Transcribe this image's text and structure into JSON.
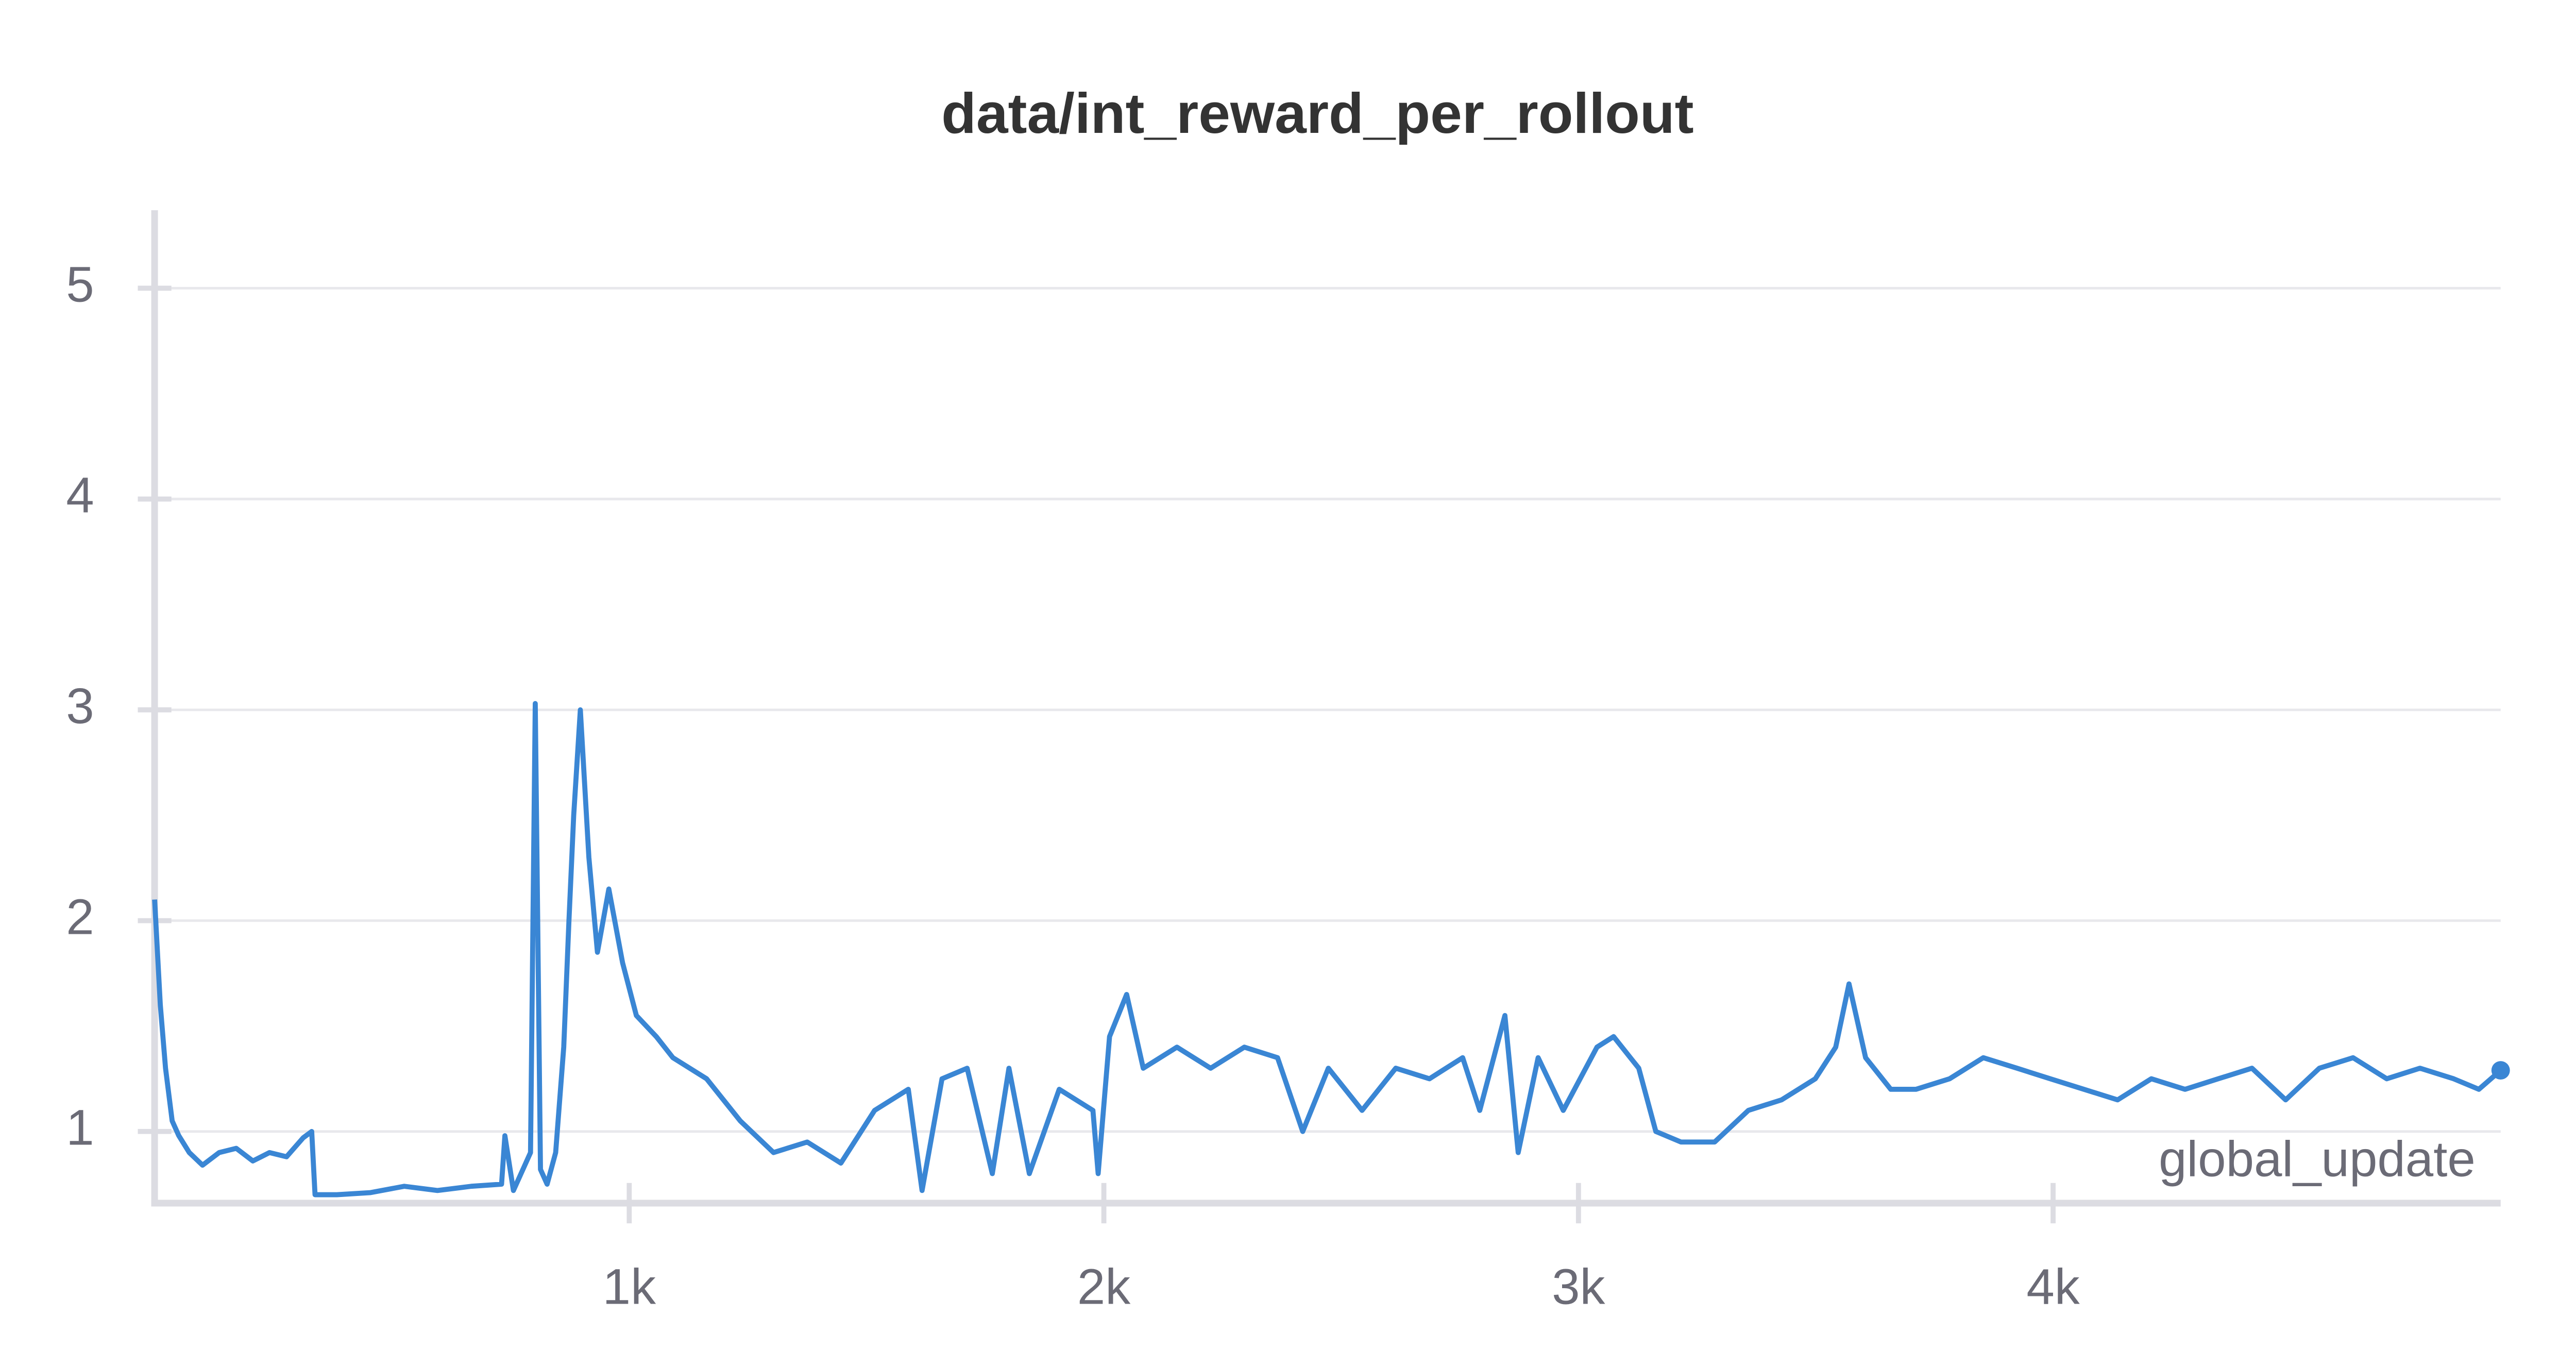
{
  "chart_data": {
    "type": "line",
    "title": "data/int_reward_per_rollout",
    "x_label": "global_update",
    "xlim": [
      0,
      4943
    ],
    "ylim": [
      0.66,
      5.37
    ],
    "xticks": [
      {
        "value": 1000,
        "label": "1k"
      },
      {
        "value": 2000,
        "label": "2k"
      },
      {
        "value": 3000,
        "label": "3k"
      },
      {
        "value": 4000,
        "label": "4k"
      }
    ],
    "yticks": [
      1,
      2,
      3,
      4,
      5
    ],
    "grid": true,
    "series": [
      {
        "name": "data/int_reward_per_rollout",
        "color": "#3a86d4",
        "x": [
          0,
          12,
          23,
          37,
          51,
          73,
          101,
          136,
          172,
          207,
          242,
          278,
          313,
          331,
          338,
          384,
          455,
          526,
          596,
          667,
          731,
          738,
          756,
          792,
          802,
          813,
          827,
          845,
          862,
          873,
          883,
          897,
          915,
          933,
          957,
          986,
          1015,
          1057,
          1092,
          1163,
          1234,
          1304,
          1375,
          1446,
          1517,
          1588,
          1617,
          1659,
          1712,
          1765,
          1800,
          1843,
          1906,
          1977,
          1988,
          2012,
          2048,
          2083,
          2154,
          2225,
          2296,
          2366,
          2419,
          2473,
          2544,
          2615,
          2686,
          2756,
          2792,
          2845,
          2873,
          2915,
          2968,
          3039,
          3074,
          3127,
          3163,
          3216,
          3287,
          3358,
          3428,
          3499,
          3542,
          3570,
          3605,
          3658,
          3711,
          3782,
          3853,
          3924,
          3994,
          4065,
          4136,
          4207,
          4278,
          4348,
          4419,
          4490,
          4561,
          4632,
          4703,
          4773,
          4844,
          4897,
          4943
        ],
        "values": [
          2.1,
          1.6,
          1.3,
          1.05,
          0.98,
          0.9,
          0.84,
          0.9,
          0.92,
          0.86,
          0.9,
          0.88,
          0.97,
          1.0,
          0.7,
          0.7,
          0.71,
          0.74,
          0.72,
          0.74,
          0.75,
          0.98,
          0.72,
          0.9,
          3.03,
          0.82,
          0.75,
          0.9,
          1.4,
          2.0,
          2.5,
          3.0,
          2.3,
          1.85,
          2.15,
          1.8,
          1.55,
          1.45,
          1.35,
          1.25,
          1.05,
          0.9,
          0.95,
          0.85,
          1.1,
          1.2,
          0.72,
          1.25,
          1.3,
          0.8,
          1.3,
          0.8,
          1.2,
          1.1,
          0.8,
          1.45,
          1.65,
          1.3,
          1.4,
          1.3,
          1.4,
          1.35,
          1.0,
          1.3,
          1.1,
          1.3,
          1.25,
          1.35,
          1.1,
          1.55,
          0.9,
          1.35,
          1.1,
          1.4,
          1.45,
          1.3,
          1.0,
          0.95,
          0.95,
          1.1,
          1.15,
          1.25,
          1.4,
          1.7,
          1.35,
          1.2,
          1.2,
          1.25,
          1.35,
          1.3,
          1.25,
          1.2,
          1.15,
          1.25,
          1.2,
          1.25,
          1.3,
          1.15,
          1.3,
          1.35,
          1.25,
          1.3,
          1.25,
          1.2,
          1.29
        ]
      }
    ]
  }
}
